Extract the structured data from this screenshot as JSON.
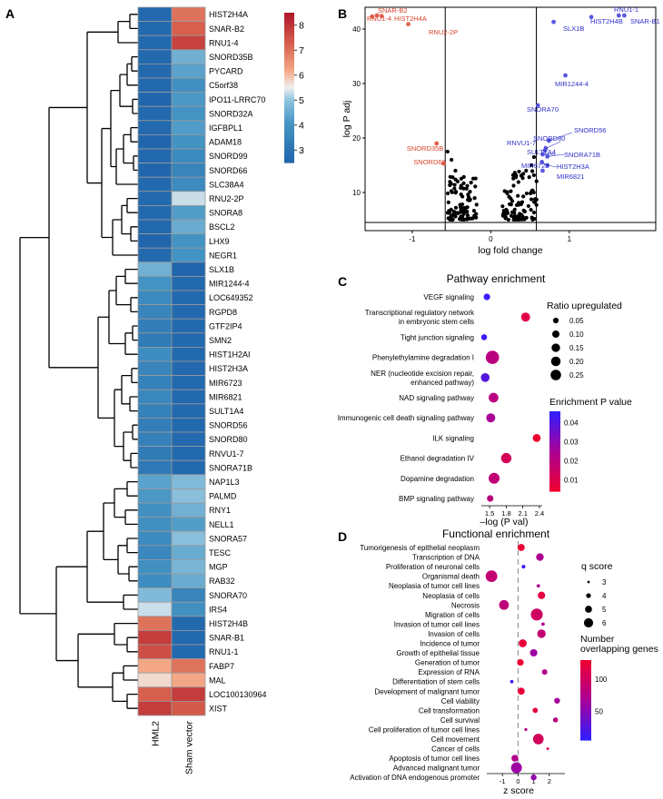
{
  "panels": {
    "a": "A",
    "b": "B",
    "c": "C",
    "d": "D"
  },
  "chart_data": [
    {
      "type": "heatmap",
      "columns": [
        "HML2",
        "Sham vector"
      ],
      "rows": [
        "HIST2H4A",
        "SNAR-B2",
        "RNU1-4",
        "SNORD35B",
        "PYCARD",
        "C5orf38",
        "IPO11-LRRC70",
        "SNORD32A",
        "IGFBPL1",
        "ADAM18",
        "SNORD99",
        "SNORD66",
        "SLC38A4",
        "RNU2-2P",
        "SNORA8",
        "BSCL2",
        "LHX9",
        "NEGR1",
        "SLX1B",
        "MIR1244-4",
        "LOC649352",
        "RGPD8",
        "GTF2IP4",
        "SMN2",
        "HIST1H2AI",
        "HIST2H3A",
        "MIR6723",
        "MIR6821",
        "SULT1A4",
        "SNORD56",
        "SNORD80",
        "RNVU1-7",
        "SNORA71B",
        "NAP1L3",
        "PALMD",
        "RNY1",
        "NELL1",
        "SNORA57",
        "TESC",
        "MGP",
        "RAB32",
        "SNORA70",
        "IRS4",
        "HIST2H4B",
        "SNAR-B1",
        "RNU1-1",
        "FABP7",
        "MAL",
        "LOC100130964",
        "XIST"
      ],
      "values": [
        [
          2.6,
          7.0
        ],
        [
          2.6,
          7.3
        ],
        [
          2.6,
          7.8
        ],
        [
          2.6,
          4.6
        ],
        [
          2.6,
          4.3
        ],
        [
          2.6,
          3.9
        ],
        [
          2.5,
          4.1
        ],
        [
          2.6,
          4.0
        ],
        [
          2.6,
          4.2
        ],
        [
          2.5,
          4.0
        ],
        [
          2.6,
          3.7
        ],
        [
          2.5,
          3.5
        ],
        [
          2.6,
          3.7
        ],
        [
          2.6,
          5.3
        ],
        [
          2.6,
          4.2
        ],
        [
          2.6,
          4.5
        ],
        [
          2.5,
          4.0
        ],
        [
          2.6,
          4.0
        ],
        [
          4.6,
          2.5
        ],
        [
          4.0,
          2.6
        ],
        [
          3.7,
          2.6
        ],
        [
          3.5,
          2.6
        ],
        [
          3.3,
          2.6
        ],
        [
          3.2,
          2.6
        ],
        [
          3.8,
          2.6
        ],
        [
          3.5,
          2.6
        ],
        [
          3.4,
          2.6
        ],
        [
          3.6,
          2.6
        ],
        [
          3.4,
          2.6
        ],
        [
          3.3,
          2.6
        ],
        [
          3.4,
          2.6
        ],
        [
          3.2,
          2.6
        ],
        [
          3.1,
          2.6
        ],
        [
          4.3,
          4.8
        ],
        [
          4.1,
          4.9
        ],
        [
          3.9,
          4.6
        ],
        [
          3.9,
          4.2
        ],
        [
          3.7,
          4.9
        ],
        [
          3.6,
          4.5
        ],
        [
          3.9,
          4.7
        ],
        [
          3.8,
          4.5
        ],
        [
          4.8,
          3.5
        ],
        [
          5.3,
          3.9
        ],
        [
          7.0,
          2.6
        ],
        [
          7.9,
          2.6
        ],
        [
          7.6,
          2.6
        ],
        [
          6.2,
          7.0
        ],
        [
          5.7,
          6.2
        ],
        [
          7.3,
          7.9
        ],
        [
          7.9,
          7.4
        ]
      ],
      "legend_ticks": [
        3,
        4,
        5,
        6,
        7,
        8
      ],
      "color_range": [
        2.5,
        8.5
      ]
    },
    {
      "type": "scatter",
      "xlabel": "log fold change",
      "ylabel": "log P adj",
      "xlim": [
        -1.6,
        2.1
      ],
      "ylim": [
        3,
        44
      ],
      "xticks": [
        -1,
        0,
        1
      ],
      "yticks": [
        10,
        20,
        30,
        40
      ],
      "vlines": [
        -0.58,
        0.58
      ],
      "hline": 4.5,
      "labeled_up": [
        {
          "label": "RNU1-1",
          "x": 1.63,
          "y": 42.5
        },
        {
          "label": "SNAR-B1",
          "x": 1.7,
          "y": 42.5
        },
        {
          "label": "HIST2H4B",
          "x": 1.28,
          "y": 42.2
        },
        {
          "label": "SLX1B",
          "x": 0.8,
          "y": 41.3
        },
        {
          "label": "MIR1244-4",
          "x": 0.95,
          "y": 31.5
        },
        {
          "label": "SNORA70",
          "x": 0.6,
          "y": 26.0
        },
        {
          "label": "SNORD56",
          "x": 0.74,
          "y": 19.5
        },
        {
          "label": "SNORD80",
          "x": 0.7,
          "y": 18.1
        },
        {
          "label": "RNVU1-7",
          "x": 0.69,
          "y": 17.7
        },
        {
          "label": "SULT1A4",
          "x": 0.66,
          "y": 17.0
        },
        {
          "label": "SNORA71B",
          "x": 0.72,
          "y": 16.6
        },
        {
          "label": "MIR6723",
          "x": 0.65,
          "y": 15.6
        },
        {
          "label": "HIST2H3A",
          "x": 0.72,
          "y": 15.0
        },
        {
          "label": "MIR6821",
          "x": 0.66,
          "y": 14.0
        }
      ],
      "labeled_down": [
        {
          "label": "SNAR-B2",
          "x": -1.45,
          "y": 42.5
        },
        {
          "label": "RNU1-4",
          "x": -1.51,
          "y": 42.3
        },
        {
          "label": "HIST2H4A",
          "x": -1.39,
          "y": 42.4
        },
        {
          "label": "RNU2-2P",
          "x": -1.05,
          "y": 40.9
        },
        {
          "label": "SNORD35B",
          "x": -0.69,
          "y": 19.0
        },
        {
          "label": "SNORD66",
          "x": -0.6,
          "y": 15.3
        }
      ]
    },
    {
      "type": "scatter",
      "title": "Pathway enrichment",
      "xlabel": "–log (P val)",
      "xlim": [
        1.35,
        2.45
      ],
      "xticks": [
        1.5,
        1.8,
        2.1,
        2.4
      ],
      "categories": [
        "VEGF signaling",
        "Transcriptional regulatory network in embryonic stem cells",
        "Tight junction signaling",
        "Phenylethylamine degradation I",
        "NER (nucleotide excision repair, enhanced pathway)",
        "NAD signaling pathway",
        "Immunogenic cell death signaling pathway",
        "ILK signaling",
        "Ethanol degradation IV",
        "Dopamine degradation",
        "BMP signaling pathway"
      ],
      "x": [
        1.45,
        2.15,
        1.4,
        1.55,
        1.42,
        1.57,
        1.52,
        2.35,
        1.8,
        1.58,
        1.51
      ],
      "ratio": [
        0.04,
        0.1,
        0.03,
        0.26,
        0.09,
        0.12,
        0.1,
        0.07,
        0.14,
        0.16,
        0.04
      ],
      "pvalue": [
        0.045,
        0.008,
        0.044,
        0.02,
        0.04,
        0.02,
        0.025,
        0.004,
        0.012,
        0.018,
        0.02
      ],
      "size_legend_title": "Ratio upregulated",
      "size_legend": [
        "0.05",
        "0.10",
        "0.15",
        "0.20",
        "0.25"
      ],
      "color_legend_title": "Enrichment P value",
      "color_legend": [
        "0.04",
        "0.03",
        "0.02",
        "0.01"
      ]
    },
    {
      "type": "scatter",
      "title": "Functional enrichment",
      "xlabel": "z score",
      "xlim": [
        -2.0,
        3.0
      ],
      "xticks": [
        -1,
        0,
        1,
        2
      ],
      "categories": [
        "Tumorigenesis of epithelial neoplasm",
        "Transcription of DNA",
        "Proliferation of neuronal cells",
        "Organismal death",
        "Neoplasia of tumor cell lines",
        "Neoplasia of cells",
        "Necrosis",
        "Migration of cells",
        "Invasion of tumor cell lines",
        "Invasion of cells",
        "Incidence of tumor",
        "Growth of epithelial tissue",
        "Generation of tumor",
        "Expression of RNA",
        "Differentiation of stem cells",
        "Development of malignant tumor",
        "Cell viability",
        "Cell transformation",
        "Cell survival",
        "Cell proliferation of tumor cell lines",
        "Cell movement",
        "Cancer of cells",
        "Apoptosis of tumor cell lines",
        "Advanced malignant tumor",
        "Activation of DNA endogenous promoter"
      ],
      "x": [
        0.2,
        1.4,
        0.35,
        -1.7,
        1.3,
        1.5,
        -0.9,
        1.2,
        1.6,
        1.5,
        0.3,
        1.0,
        0.15,
        1.7,
        -0.4,
        0.2,
        2.5,
        1.1,
        2.4,
        0.5,
        1.3,
        1.9,
        -0.2,
        -0.1,
        1.0
      ],
      "qscore": [
        4.6,
        4.8,
        3.3,
        6.3,
        3.2,
        4.7,
        5.6,
        6.4,
        3.2,
        5.1,
        4.9,
        4.7,
        4.4,
        4.0,
        3.2,
        4.6,
        4.1,
        3.9,
        3.8,
        3.0,
        5.9,
        2.9,
        4.5,
        6.0,
        4.1
      ],
      "genes": [
        128,
        70,
        8,
        90,
        70,
        120,
        85,
        100,
        70,
        90,
        125,
        60,
        130,
        75,
        5,
        125,
        65,
        120,
        80,
        80,
        105,
        120,
        75,
        60,
        55
      ],
      "size_legend_title": "q score",
      "size_legend": [
        "3",
        "4",
        "5",
        "6"
      ],
      "color_legend_title": "Number overlapping genes",
      "color_legend": [
        "100",
        "50"
      ]
    }
  ]
}
